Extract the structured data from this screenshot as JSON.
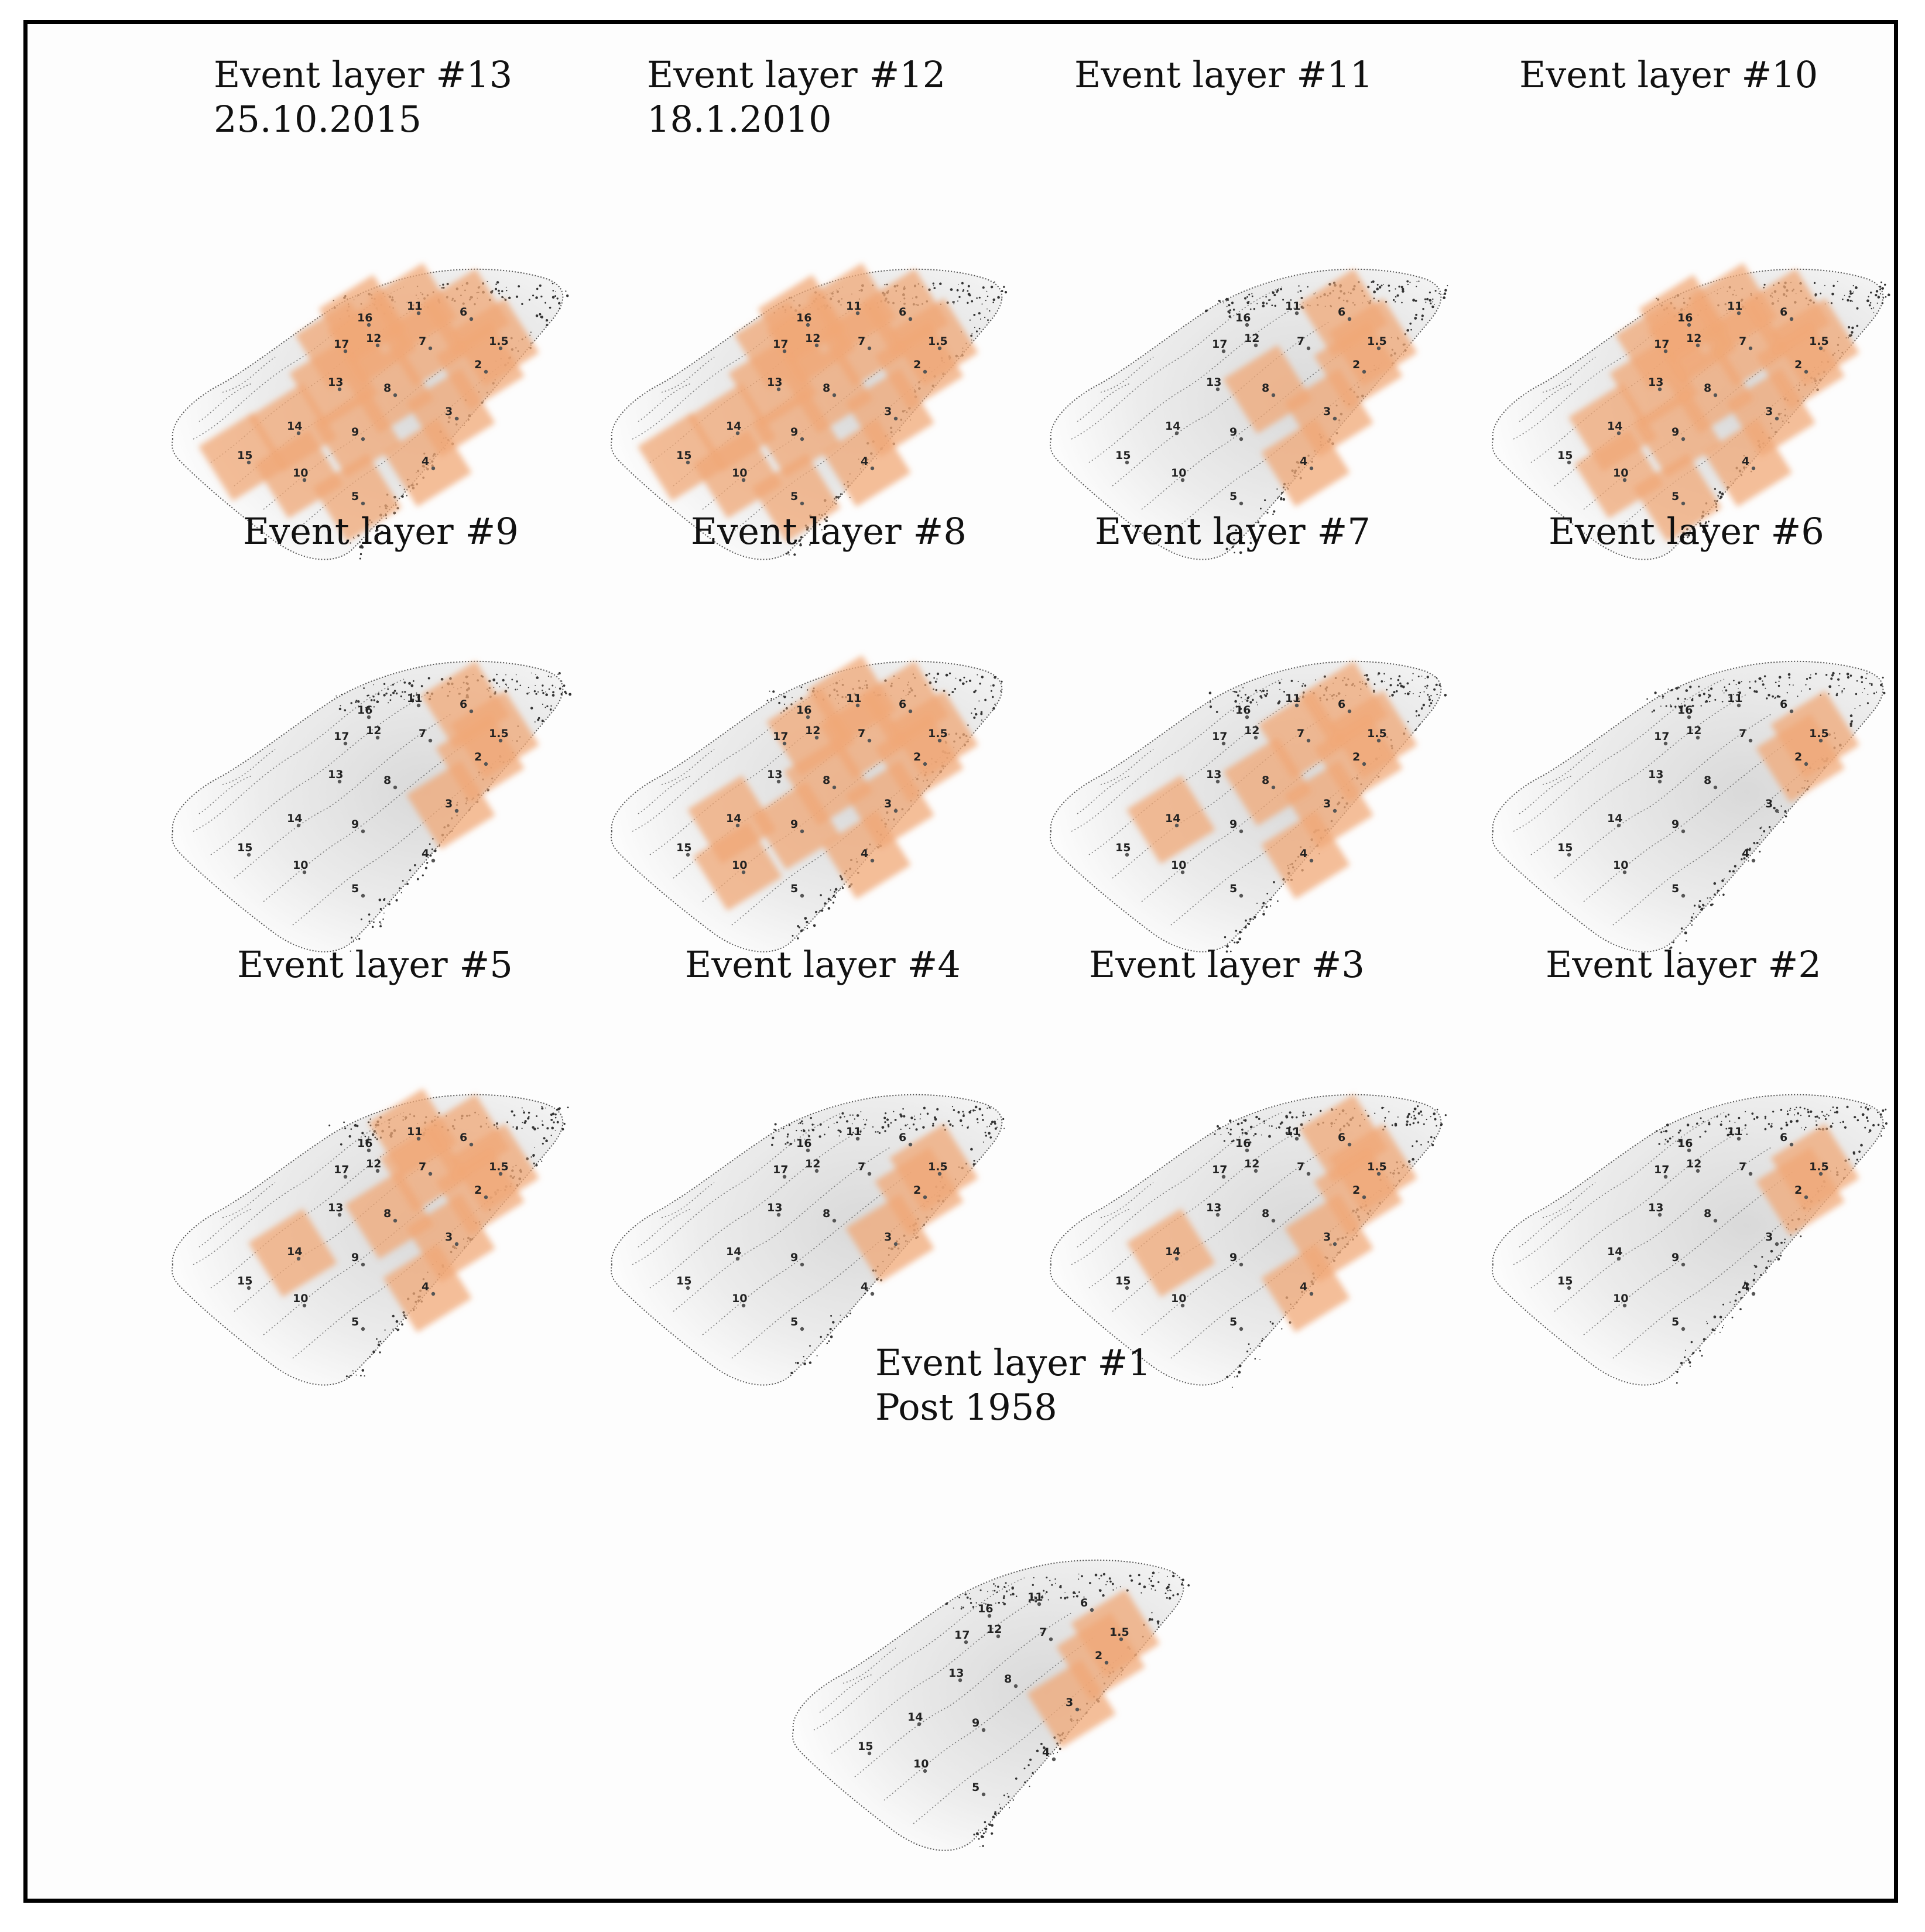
{
  "figure": {
    "description_free": true,
    "colors": {
      "highlight": "#f0a877",
      "highlight_edge": "#e59158",
      "surface": "#e8e8e8",
      "contour": "#555555",
      "frame": "#000000"
    }
  },
  "cell_labels": [
    "1.5",
    "2",
    "3",
    "4",
    "5",
    "6",
    "7",
    "8",
    "9",
    "10",
    "11",
    "12",
    "13",
    "14",
    "15",
    "16",
    "17"
  ],
  "panels": [
    {
      "title_line1": "Event layer #13",
      "title_line2": "25.10.2015",
      "cells": [
        "2",
        "3",
        "4",
        "5",
        "6",
        "7",
        "8",
        "9",
        "10",
        "11",
        "12",
        "13",
        "14",
        "15",
        "16",
        "17",
        "1.5"
      ]
    },
    {
      "title_line1": "Event layer #12",
      "title_line2": "18.1.2010",
      "cells": [
        "2",
        "3",
        "4",
        "5",
        "6",
        "7",
        "8",
        "9",
        "10",
        "11",
        "12",
        "13",
        "14",
        "15",
        "16",
        "17",
        "1.5"
      ]
    },
    {
      "title_line1": "Event layer #11",
      "title_line2": "",
      "cells": [
        "1.5",
        "2",
        "3",
        "4",
        "6",
        "8"
      ]
    },
    {
      "title_line1": "Event layer #10",
      "title_line2": "",
      "cells": [
        "1.5",
        "2",
        "3",
        "4",
        "5",
        "6",
        "7",
        "8",
        "9",
        "10",
        "11",
        "12",
        "13",
        "14",
        "16",
        "17"
      ]
    },
    {
      "title_line1": "Event layer #9",
      "title_line2": "",
      "cells": [
        "1.5",
        "2",
        "3",
        "6"
      ]
    },
    {
      "title_line1": "Event layer #8",
      "title_line2": "",
      "cells": [
        "1.5",
        "2",
        "3",
        "4",
        "6",
        "7",
        "8",
        "9",
        "10",
        "11",
        "12",
        "14"
      ]
    },
    {
      "title_line1": "Event layer #7",
      "title_line2": "",
      "cells": [
        "1.5",
        "2",
        "3",
        "4",
        "6",
        "7",
        "8",
        "14"
      ]
    },
    {
      "title_line1": "Event layer #6",
      "title_line2": "",
      "cells": [
        "1.5",
        "2"
      ]
    },
    {
      "title_line1": "Event layer #5",
      "title_line2": "",
      "cells": [
        "1.5",
        "2",
        "3",
        "4",
        "6",
        "7",
        "8",
        "11",
        "14"
      ]
    },
    {
      "title_line1": "Event layer #4",
      "title_line2": "",
      "cells": [
        "1.5",
        "2",
        "3"
      ]
    },
    {
      "title_line1": "Event layer #3",
      "title_line2": "",
      "cells": [
        "1.5",
        "2",
        "3",
        "4",
        "6",
        "14"
      ]
    },
    {
      "title_line1": "Event layer #2",
      "title_line2": "",
      "cells": [
        "1.5",
        "2"
      ]
    },
    {
      "title_line1": "Event layer #1",
      "title_line2": "Post 1958",
      "cells": [
        "1.5",
        "2",
        "3"
      ]
    }
  ]
}
